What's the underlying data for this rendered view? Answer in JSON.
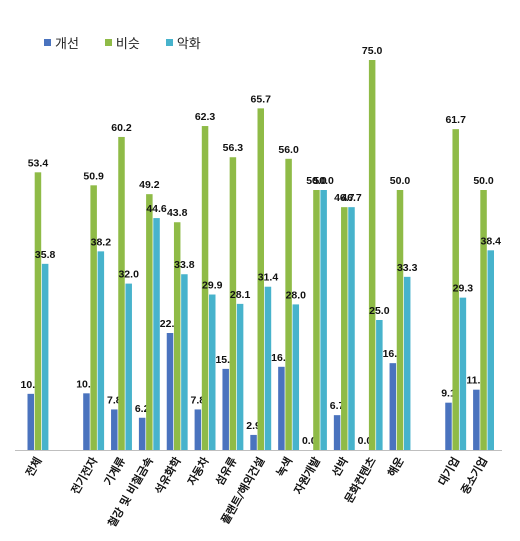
{
  "chart_data": {
    "type": "bar",
    "categories": [
      "전체",
      "",
      "전기전자",
      "기계류",
      "철강 및 비철금속",
      "석유화학",
      "자동차",
      "섬유류",
      "플랜트/해외건설",
      "녹색",
      "자원개발",
      "선박",
      "문화컨텐츠",
      "해운",
      "",
      "대기업",
      "중소기업"
    ],
    "series": [
      {
        "name": "개선",
        "color": "#4A73BE",
        "values": [
          10.8,
          null,
          10.9,
          7.8,
          6.2,
          22.5,
          7.8,
          15.6,
          2.9,
          16.0,
          0.0,
          6.7,
          0.0,
          16.7,
          null,
          9.1,
          11.6
        ]
      },
      {
        "name": "비슷",
        "color": "#8FBB47",
        "values": [
          53.4,
          null,
          50.9,
          60.2,
          49.2,
          43.8,
          62.3,
          56.3,
          65.7,
          56.0,
          50.0,
          46.7,
          75.0,
          50.0,
          null,
          61.7,
          50.0
        ]
      },
      {
        "name": "악화",
        "color": "#47B3CC",
        "values": [
          35.8,
          null,
          38.2,
          32.0,
          44.6,
          33.8,
          29.9,
          28.1,
          31.4,
          28.0,
          50.0,
          46.7,
          25.0,
          33.3,
          null,
          29.3,
          38.4
        ]
      }
    ],
    "ylim": [
      0,
      80
    ],
    "legend": "top-left",
    "grid": false
  }
}
